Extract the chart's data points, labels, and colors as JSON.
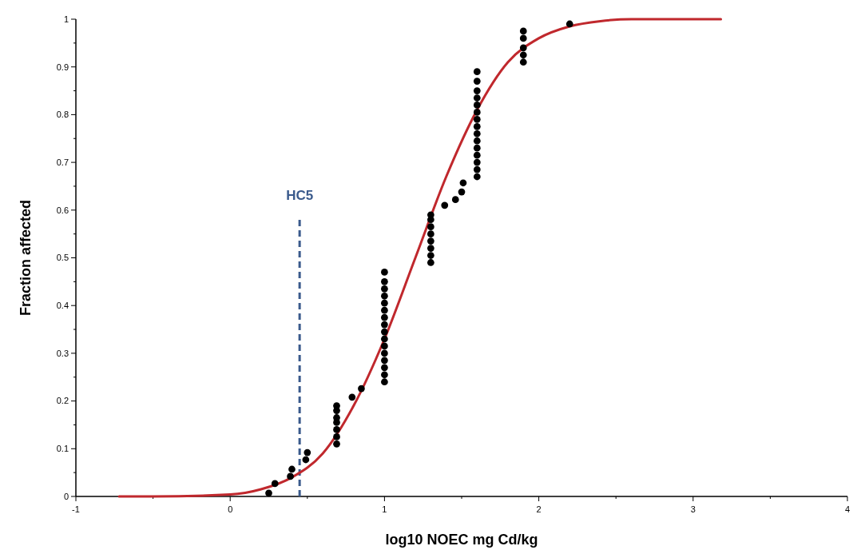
{
  "chart_data": {
    "type": "scatter",
    "xlabel": "log10 NOEC mg Cd/kg",
    "ylabel": "Fraction affected",
    "xlim": [
      -1,
      4
    ],
    "xticks": [
      -1,
      0,
      1,
      2,
      3,
      4
    ],
    "ylim": [
      0,
      1
    ],
    "yticks": [
      0,
      0.1,
      0.2,
      0.3,
      0.4,
      0.5,
      0.6,
      0.7,
      0.8,
      0.9,
      1
    ],
    "grid": false,
    "series": [
      {
        "marker": "circle",
        "color": "#000000",
        "x": [
          0.25,
          0.29,
          0.39,
          0.4,
          0.49,
          0.5,
          0.69,
          0.69,
          0.69,
          0.69,
          0.69,
          0.69,
          0.69,
          0.79,
          0.85,
          1,
          1,
          1,
          1,
          1,
          1,
          1,
          1,
          1,
          1,
          1,
          1,
          1,
          1,
          1,
          1,
          1.3,
          1.3,
          1.3,
          1.3,
          1.3,
          1.3,
          1.3,
          1.3,
          1.39,
          1.46,
          1.5,
          1.51,
          1.6,
          1.6,
          1.6,
          1.6,
          1.6,
          1.6,
          1.6,
          1.6,
          1.6,
          1.6,
          1.6,
          1.6,
          1.6,
          1.6,
          1.6,
          1.9,
          1.9,
          1.9,
          1.9,
          1.9,
          2.2
        ],
        "values": [
          0.007,
          0.027,
          0.042,
          0.057,
          0.077,
          0.092,
          0.11,
          0.125,
          0.14,
          0.155,
          0.165,
          0.18,
          0.19,
          0.208,
          0.226,
          0.24,
          0.255,
          0.27,
          0.285,
          0.3,
          0.315,
          0.33,
          0.345,
          0.36,
          0.375,
          0.39,
          0.405,
          0.42,
          0.435,
          0.45,
          0.47,
          0.49,
          0.505,
          0.52,
          0.535,
          0.55,
          0.565,
          0.58,
          0.59,
          0.61,
          0.622,
          0.638,
          0.657,
          0.67,
          0.685,
          0.7,
          0.715,
          0.73,
          0.745,
          0.76,
          0.775,
          0.79,
          0.805,
          0.82,
          0.835,
          0.85,
          0.87,
          0.89,
          0.91,
          0.925,
          0.94,
          0.96,
          0.975,
          0.99
        ]
      },
      {
        "type": "line",
        "marker": "none",
        "line_style": "solid",
        "color": "#c0282d",
        "x": [
          -0.72,
          -0.5,
          0,
          0.2,
          0.4,
          0.6,
          0.8,
          1,
          1.2,
          1.4,
          1.6,
          1.8,
          2,
          2.2,
          2.4,
          2.6,
          3.18
        ],
        "values": [
          0,
          0,
          0.004,
          0.015,
          0.04,
          0.09,
          0.19,
          0.33,
          0.5,
          0.67,
          0.81,
          0.91,
          0.96,
          0.985,
          0.996,
          1,
          1
        ]
      }
    ],
    "ref_lines": [
      {
        "axis": "x",
        "value": 0.45,
        "label": "HC5",
        "color": "#3a5a8c",
        "line_style": "dashed"
      }
    ]
  }
}
